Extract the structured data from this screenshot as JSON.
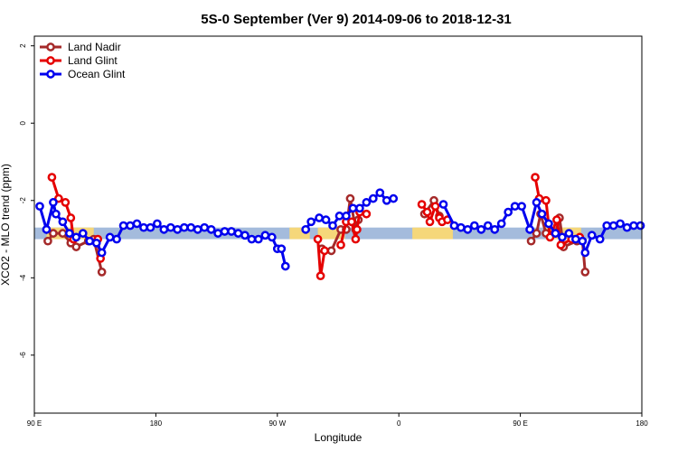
{
  "chart_data": {
    "type": "line",
    "title": "5S-0 September (Ver 9)   2014-09-06 to 2018-12-31",
    "xlabel": "Longitude",
    "ylabel": "XCO2 - MLO trend (ppm)",
    "xlim": [
      90,
      540
    ],
    "ylim": [
      -7.5,
      2.25
    ],
    "x_ticks": [
      {
        "value": 90,
        "label": "90 E"
      },
      {
        "value": 180,
        "label": "180"
      },
      {
        "value": 270,
        "label": "90 W"
      },
      {
        "value": 360,
        "label": "0"
      },
      {
        "value": 450,
        "label": "90 E"
      },
      {
        "value": 540,
        "label": "180"
      }
    ],
    "y_ticks": [
      {
        "value": 2,
        "label": "2"
      },
      {
        "value": 0,
        "label": "0"
      },
      {
        "value": -2,
        "label": "-2"
      },
      {
        "value": -4,
        "label": "-4"
      },
      {
        "value": -6,
        "label": "-6"
      }
    ],
    "grid": false,
    "legend": {
      "position": "top-left"
    },
    "band": {
      "y_low": -3.0,
      "y_high": -2.7,
      "ocean_color": "#a4bbdc",
      "land_color": "#f5d77a",
      "land_ranges": [
        [
          99,
          134
        ],
        [
          279,
          294
        ],
        [
          300,
          320
        ],
        [
          370,
          400
        ],
        [
          469,
          495
        ]
      ]
    },
    "series": [
      {
        "name": "Land Nadir",
        "color": "#a52a2a",
        "points": [
          [
            100,
            -3.05
          ],
          [
            104,
            -2.85
          ],
          [
            111,
            -2.85
          ],
          [
            117,
            -3.1
          ],
          [
            121,
            -3.2
          ],
          [
            130,
            -3.05
          ],
          [
            134,
            -3.0
          ],
          [
            140,
            -3.85
          ],
          [
            303,
            -3.25
          ],
          [
            310,
            -3.3
          ],
          [
            317,
            -2.75
          ],
          [
            321,
            -2.75
          ],
          [
            324,
            -1.95
          ],
          [
            328,
            -2.75
          ],
          [
            330,
            -2.5
          ],
          [
            379,
            -2.35
          ],
          [
            386,
            -2.0
          ],
          [
            390,
            -2.4
          ],
          [
            458,
            -3.05
          ],
          [
            462,
            -2.85
          ],
          [
            465,
            -2.35
          ],
          [
            469,
            -2.85
          ],
          [
            476,
            -2.85
          ],
          [
            479,
            -2.45
          ],
          [
            482,
            -3.2
          ],
          [
            492,
            -3.05
          ],
          [
            496,
            -3.05
          ],
          [
            498,
            -3.85
          ]
        ]
      },
      {
        "name": "Land Glint",
        "color": "#e50000",
        "points": [
          [
            103,
            -1.4
          ],
          [
            108,
            -1.95
          ],
          [
            113,
            -2.05
          ],
          [
            117,
            -2.45
          ],
          [
            119,
            -3.0
          ],
          [
            137,
            -3.0
          ],
          [
            139,
            -3.5
          ],
          [
            300,
            -3.0
          ],
          [
            302,
            -3.95
          ],
          [
            305,
            -3.3
          ],
          [
            317,
            -3.15
          ],
          [
            321,
            -2.55
          ],
          [
            325,
            -2.55
          ],
          [
            328,
            -3.0
          ],
          [
            329,
            -2.75
          ],
          [
            331,
            -2.3
          ],
          [
            336,
            -2.35
          ],
          [
            377,
            -2.1
          ],
          [
            381,
            -2.3
          ],
          [
            383,
            -2.55
          ],
          [
            387,
            -2.15
          ],
          [
            390,
            -2.45
          ],
          [
            392,
            -2.55
          ],
          [
            396,
            -2.5
          ],
          [
            461,
            -1.4
          ],
          [
            464,
            -1.95
          ],
          [
            469,
            -2.0
          ],
          [
            472,
            -2.95
          ],
          [
            477,
            -2.5
          ],
          [
            480,
            -3.15
          ],
          [
            488,
            -3.0
          ],
          [
            494,
            -2.95
          ]
        ]
      },
      {
        "name": "Ocean Glint",
        "color": "#0000ee",
        "points": [
          [
            94,
            -2.15
          ],
          [
            99,
            -2.75
          ],
          [
            104,
            -2.05
          ],
          [
            106,
            -2.35
          ],
          [
            111,
            -2.55
          ],
          [
            116,
            -2.85
          ],
          [
            121,
            -2.95
          ],
          [
            126,
            -2.85
          ],
          [
            131,
            -3.05
          ],
          [
            136,
            -3.1
          ],
          [
            140,
            -3.35
          ],
          [
            146,
            -2.95
          ],
          [
            151,
            -3.0
          ],
          [
            156,
            -2.65
          ],
          [
            161,
            -2.65
          ],
          [
            166,
            -2.6
          ],
          [
            171,
            -2.7
          ],
          [
            176,
            -2.7
          ],
          [
            181,
            -2.6
          ],
          [
            186,
            -2.75
          ],
          [
            191,
            -2.7
          ],
          [
            196,
            -2.75
          ],
          [
            201,
            -2.7
          ],
          [
            206,
            -2.7
          ],
          [
            211,
            -2.75
          ],
          [
            216,
            -2.7
          ],
          [
            221,
            -2.75
          ],
          [
            226,
            -2.85
          ],
          [
            231,
            -2.8
          ],
          [
            236,
            -2.8
          ],
          [
            241,
            -2.85
          ],
          [
            246,
            -2.9
          ],
          [
            251,
            -3.0
          ],
          [
            256,
            -3.0
          ],
          [
            261,
            -2.9
          ],
          [
            266,
            -2.95
          ],
          [
            270,
            -3.25
          ],
          [
            273,
            -3.25
          ],
          [
            276,
            -3.7
          ],
          [
            291,
            -2.75
          ],
          [
            295,
            -2.55
          ],
          [
            301,
            -2.45
          ],
          [
            306,
            -2.5
          ],
          [
            311,
            -2.65
          ],
          [
            316,
            -2.4
          ],
          [
            321,
            -2.4
          ],
          [
            326,
            -2.2
          ],
          [
            331,
            -2.2
          ],
          [
            336,
            -2.05
          ],
          [
            341,
            -1.95
          ],
          [
            346,
            -1.8
          ],
          [
            351,
            -2.0
          ],
          [
            356,
            -1.95
          ],
          [
            393,
            -2.1
          ],
          [
            401,
            -2.65
          ],
          [
            406,
            -2.7
          ],
          [
            411,
            -2.75
          ],
          [
            416,
            -2.65
          ],
          [
            421,
            -2.75
          ],
          [
            426,
            -2.65
          ],
          [
            431,
            -2.75
          ],
          [
            436,
            -2.6
          ],
          [
            441,
            -2.3
          ],
          [
            446,
            -2.15
          ],
          [
            451,
            -2.15
          ],
          [
            457,
            -2.75
          ],
          [
            462,
            -2.05
          ],
          [
            466,
            -2.35
          ],
          [
            471,
            -2.6
          ],
          [
            476,
            -2.85
          ],
          [
            481,
            -2.95
          ],
          [
            486,
            -2.85
          ],
          [
            491,
            -3.0
          ],
          [
            496,
            -3.05
          ],
          [
            498,
            -3.35
          ],
          [
            503,
            -2.9
          ],
          [
            509,
            -3.0
          ],
          [
            514,
            -2.65
          ],
          [
            519,
            -2.65
          ],
          [
            524,
            -2.6
          ],
          [
            529,
            -2.7
          ],
          [
            534,
            -2.65
          ],
          [
            539,
            -2.65
          ]
        ]
      }
    ]
  }
}
